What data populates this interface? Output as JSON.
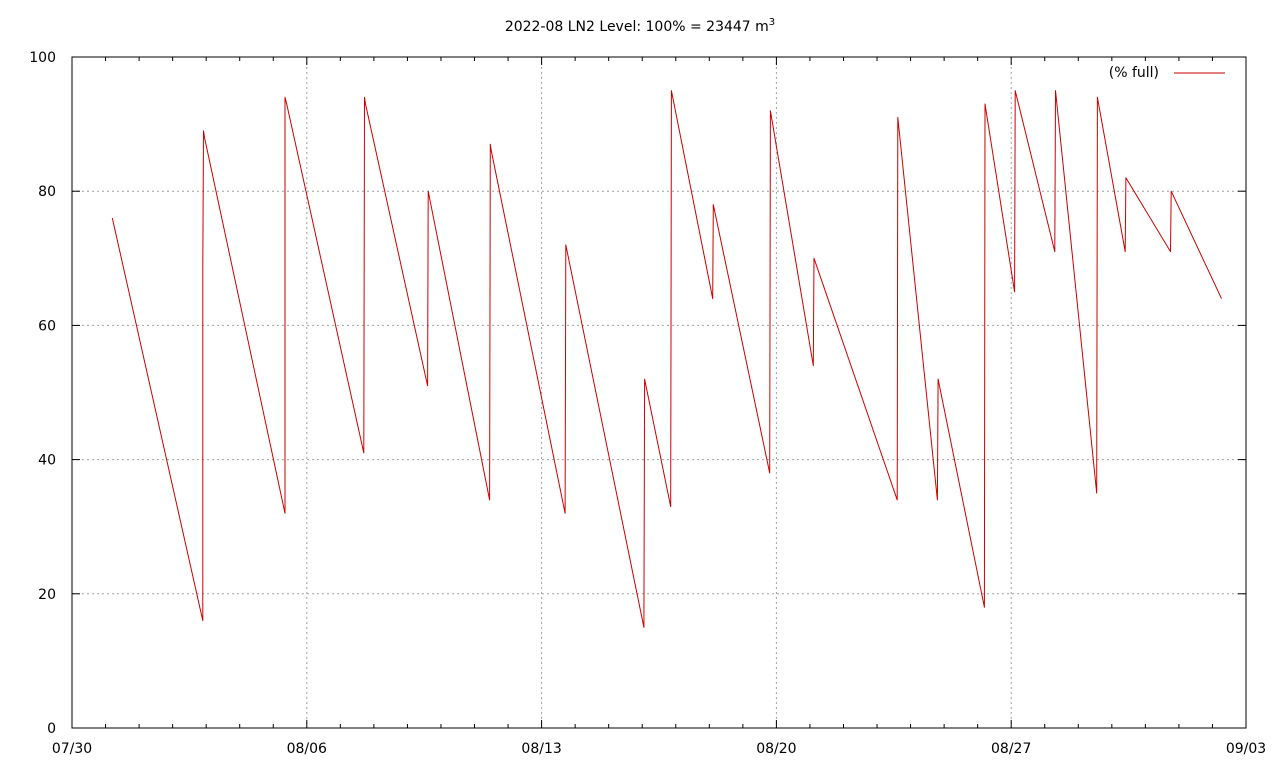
{
  "chart_data": {
    "type": "line",
    "title": "2022-08 LN2 Level: 100% = 23447 m",
    "title_superscript": "3",
    "xlabel": "",
    "ylabel": "",
    "x_tick_labels": [
      "07/30",
      "08/06",
      "08/13",
      "08/20",
      "08/27",
      "09/03"
    ],
    "x_tick_days": [
      0,
      7,
      14,
      21,
      28,
      35
    ],
    "xlim_days": [
      0,
      35
    ],
    "ylim": [
      0,
      100
    ],
    "y_ticks": [
      0,
      20,
      40,
      60,
      80,
      100
    ],
    "grid": true,
    "legend_position": "top-right",
    "series": [
      {
        "name": "(% full)",
        "color": "#cc0000",
        "x": [
          1.2,
          3.9,
          3.9,
          3.92,
          3.95,
          6.35,
          6.35,
          6.4,
          8.7,
          8.72,
          8.75,
          10.6,
          10.62,
          12.45,
          12.47,
          12.5,
          14.7,
          14.72,
          17.05,
          17.07,
          17.85,
          17.87,
          19.1,
          19.12,
          20.8,
          20.82,
          22.1,
          22.12,
          24.6,
          24.62,
          25.8,
          25.82,
          27.2,
          27.22,
          28.1,
          28.12,
          29.3,
          29.32,
          30.55,
          30.57,
          31.4,
          31.42,
          32.75,
          32.77,
          34.27
        ],
        "y": [
          76,
          16,
          69,
          89,
          88,
          32,
          94,
          93,
          41,
          94,
          93,
          51,
          80,
          34,
          87,
          86,
          32,
          72,
          15,
          52,
          33,
          95,
          64,
          78,
          38,
          92,
          54,
          70,
          34,
          91,
          34,
          52,
          18,
          93,
          65,
          95,
          71,
          95,
          35,
          94,
          71,
          82,
          71,
          80,
          64
        ]
      }
    ]
  }
}
